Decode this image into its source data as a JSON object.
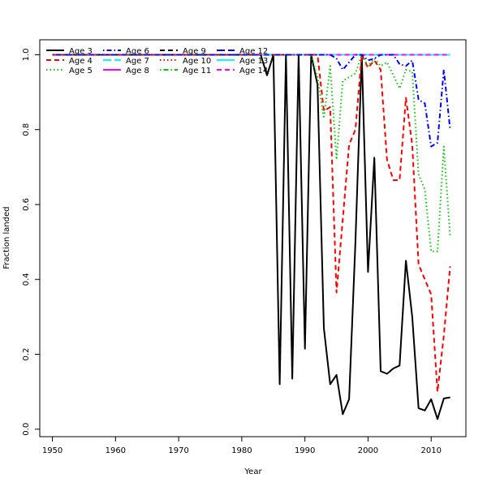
{
  "chart_data": {
    "type": "line",
    "title": "",
    "xlabel": "Year",
    "ylabel": "Fraction landed",
    "xlim": [
      1948,
      2015.5
    ],
    "ylim": [
      -0.02,
      1.04
    ],
    "xticks": [
      1950,
      1960,
      1970,
      1980,
      1990,
      2000,
      2010
    ],
    "yticks": [
      0.0,
      0.2,
      0.4,
      0.6,
      0.8,
      1.0
    ],
    "xtick_labels": [
      "1950",
      "1960",
      "1970",
      "1980",
      "1990",
      "2000",
      "2010"
    ],
    "ytick_labels": [
      "0.0",
      "0.2",
      "0.4",
      "0.6",
      "0.8",
      "1.0"
    ],
    "grid": false,
    "legend_position": "top-left",
    "x": [
      1950,
      1951,
      1952,
      1953,
      1954,
      1955,
      1956,
      1957,
      1958,
      1959,
      1960,
      1961,
      1962,
      1963,
      1964,
      1965,
      1966,
      1967,
      1968,
      1969,
      1970,
      1971,
      1972,
      1973,
      1974,
      1975,
      1976,
      1977,
      1978,
      1979,
      1980,
      1981,
      1982,
      1983,
      1984,
      1985,
      1986,
      1987,
      1988,
      1989,
      1990,
      1991,
      1992,
      1993,
      1994,
      1995,
      1996,
      1997,
      1998,
      1999,
      2000,
      2001,
      2002,
      2003,
      2004,
      2005,
      2006,
      2007,
      2008,
      2009,
      2010,
      2011,
      2012,
      2013
    ],
    "series": [
      {
        "name": "Age 3",
        "color": "#000000",
        "dash": "solid",
        "values": [
          1,
          1,
          1,
          1,
          1,
          1,
          1,
          1,
          1,
          1,
          1,
          1,
          1,
          1,
          1,
          1,
          1,
          1,
          1,
          1,
          1,
          1,
          1,
          1,
          1,
          1,
          1,
          1,
          1,
          1,
          1,
          1,
          1,
          1,
          0.945,
          1,
          0.12,
          1,
          0.135,
          1,
          0.215,
          1,
          0.92,
          0.27,
          0.12,
          0.145,
          0.04,
          0.08,
          0.5,
          1,
          0.42,
          0.725,
          0.155,
          0.148,
          0.162,
          0.17,
          0.45,
          0.3,
          0.056,
          0.05,
          0.08,
          0.027,
          0.082,
          0.085
        ]
      },
      {
        "name": "Age 4",
        "color": "#ff0000",
        "dash": "dashed",
        "values": [
          1,
          1,
          1,
          1,
          1,
          1,
          1,
          1,
          1,
          1,
          1,
          1,
          1,
          1,
          1,
          1,
          1,
          1,
          1,
          1,
          1,
          1,
          1,
          1,
          1,
          1,
          1,
          1,
          1,
          1,
          1,
          1,
          1,
          1,
          1,
          1,
          1,
          1,
          1,
          1,
          1,
          1,
          1,
          0.85,
          0.86,
          0.365,
          0.56,
          0.76,
          0.8,
          1,
          0.965,
          0.985,
          0.96,
          0.72,
          0.665,
          0.665,
          0.885,
          0.76,
          0.44,
          0.4,
          0.36,
          0.1,
          0.25,
          0.435
        ]
      },
      {
        "name": "Age 5",
        "color": "#00cd00",
        "dash": "dotted",
        "values": [
          1,
          1,
          1,
          1,
          1,
          1,
          1,
          1,
          1,
          1,
          1,
          1,
          1,
          1,
          1,
          1,
          1,
          1,
          1,
          1,
          1,
          1,
          1,
          1,
          1,
          1,
          1,
          1,
          1,
          1,
          1,
          1,
          1,
          1,
          1,
          1,
          1,
          1,
          1,
          1,
          1,
          1,
          0.94,
          0.83,
          0.97,
          0.72,
          0.93,
          0.94,
          0.95,
          1,
          0.97,
          0.99,
          0.97,
          0.98,
          0.945,
          0.91,
          0.96,
          0.955,
          0.68,
          0.64,
          0.475,
          0.475,
          0.755,
          0.515
        ]
      },
      {
        "name": "Age 6",
        "color": "#0000ff",
        "dash": "dotdash",
        "values": [
          1,
          1,
          1,
          1,
          1,
          1,
          1,
          1,
          1,
          1,
          1,
          1,
          1,
          1,
          1,
          1,
          1,
          1,
          1,
          1,
          1,
          1,
          1,
          1,
          1,
          1,
          1,
          1,
          1,
          1,
          1,
          1,
          1,
          1,
          1,
          1,
          1,
          1,
          1,
          1,
          1,
          1,
          1,
          1,
          1,
          0.99,
          0.96,
          0.98,
          1,
          1,
          0.985,
          0.99,
          1,
          1,
          1,
          0.975,
          0.97,
          0.985,
          0.88,
          0.87,
          0.755,
          0.765,
          0.96,
          0.8
        ]
      },
      {
        "name": "Age 7",
        "color": "#00ffff",
        "dash": "longdash",
        "values": [
          1,
          1,
          1,
          1,
          1,
          1,
          1,
          1,
          1,
          1,
          1,
          1,
          1,
          1,
          1,
          1,
          1,
          1,
          1,
          1,
          1,
          1,
          1,
          1,
          1,
          1,
          1,
          1,
          1,
          1,
          1,
          1,
          1,
          1,
          1,
          1,
          1,
          1,
          1,
          1,
          1,
          1,
          1,
          1,
          1,
          1,
          1,
          1,
          1,
          1,
          1,
          1,
          1,
          1,
          1,
          1,
          1,
          1,
          1,
          1,
          1,
          1,
          1,
          1
        ]
      },
      {
        "name": "Age 8",
        "color": "#ff00ff",
        "dash": "solid",
        "values": [
          1,
          1,
          1,
          1,
          1,
          1,
          1,
          1,
          1,
          1,
          1,
          1,
          1,
          1,
          1,
          1,
          1,
          1,
          1,
          1,
          1,
          1,
          1,
          1,
          1,
          1,
          1,
          1,
          1,
          1,
          1,
          1,
          1,
          1,
          1,
          1,
          1,
          1,
          1,
          1,
          1,
          1,
          1,
          1,
          1,
          1,
          1,
          1,
          1,
          1,
          1,
          1,
          1,
          1,
          1,
          1,
          1,
          1,
          1,
          1,
          1,
          1,
          1,
          1
        ]
      },
      {
        "name": "Age 9",
        "color": "#000000",
        "dash": "dashed",
        "values": [
          1,
          1,
          1,
          1,
          1,
          1,
          1,
          1,
          1,
          1,
          1,
          1,
          1,
          1,
          1,
          1,
          1,
          1,
          1,
          1,
          1,
          1,
          1,
          1,
          1,
          1,
          1,
          1,
          1,
          1,
          1,
          1,
          1,
          1,
          1,
          1,
          1,
          1,
          1,
          1,
          1,
          1,
          1,
          1,
          1,
          1,
          1,
          1,
          1,
          1,
          1,
          1,
          1,
          1,
          1,
          1,
          1,
          1,
          1,
          1,
          1,
          1,
          1,
          1
        ]
      },
      {
        "name": "Age 10",
        "color": "#ff0000",
        "dash": "dotted",
        "values": [
          1,
          1,
          1,
          1,
          1,
          1,
          1,
          1,
          1,
          1,
          1,
          1,
          1,
          1,
          1,
          1,
          1,
          1,
          1,
          1,
          1,
          1,
          1,
          1,
          1,
          1,
          1,
          1,
          1,
          1,
          1,
          1,
          1,
          1,
          1,
          1,
          1,
          1,
          1,
          1,
          1,
          1,
          1,
          1,
          1,
          1,
          1,
          1,
          1,
          1,
          1,
          1,
          1,
          1,
          1,
          1,
          1,
          1,
          1,
          1,
          1,
          1,
          1,
          1
        ]
      },
      {
        "name": "Age 11",
        "color": "#00cd00",
        "dash": "dotdash",
        "values": [
          1,
          1,
          1,
          1,
          1,
          1,
          1,
          1,
          1,
          1,
          1,
          1,
          1,
          1,
          1,
          1,
          1,
          1,
          1,
          1,
          1,
          1,
          1,
          1,
          1,
          1,
          1,
          1,
          1,
          1,
          1,
          1,
          1,
          1,
          1,
          1,
          1,
          1,
          1,
          1,
          1,
          1,
          1,
          1,
          1,
          1,
          1,
          1,
          1,
          1,
          1,
          1,
          1,
          1,
          1,
          1,
          1,
          1,
          1,
          1,
          1,
          1,
          1,
          1
        ]
      },
      {
        "name": "Age 12",
        "color": "#0000ff",
        "dash": "longdash",
        "values": [
          1,
          1,
          1,
          1,
          1,
          1,
          1,
          1,
          1,
          1,
          1,
          1,
          1,
          1,
          1,
          1,
          1,
          1,
          1,
          1,
          1,
          1,
          1,
          1,
          1,
          1,
          1,
          1,
          1,
          1,
          1,
          1,
          1,
          1,
          1,
          1,
          1,
          1,
          1,
          1,
          1,
          1,
          1,
          1,
          1,
          1,
          1,
          1,
          1,
          1,
          1,
          1,
          1,
          1,
          1,
          1,
          1,
          1,
          1,
          1,
          1,
          1,
          1,
          1
        ]
      },
      {
        "name": "Age 13",
        "color": "#00ffff",
        "dash": "solid",
        "values": [
          1,
          1,
          1,
          1,
          1,
          1,
          1,
          1,
          1,
          1,
          1,
          1,
          1,
          1,
          1,
          1,
          1,
          1,
          1,
          1,
          1,
          1,
          1,
          1,
          1,
          1,
          1,
          1,
          1,
          1,
          1,
          1,
          1,
          1,
          1,
          1,
          1,
          1,
          1,
          1,
          1,
          1,
          1,
          1,
          1,
          1,
          1,
          1,
          1,
          1,
          1,
          1,
          1,
          1,
          1,
          1,
          1,
          1,
          1,
          1,
          1,
          1,
          1,
          1
        ]
      },
      {
        "name": "Age 14",
        "color": "#ff00ff",
        "dash": "dashed",
        "values": [
          1,
          1,
          1,
          1,
          1,
          1,
          1,
          1,
          1,
          1,
          1,
          1,
          1,
          1,
          1,
          1,
          1,
          1,
          1,
          1,
          1,
          1,
          1,
          1,
          1,
          1,
          1,
          1,
          1,
          1,
          1,
          1,
          1,
          1,
          1,
          1,
          1,
          1,
          1,
          1,
          1,
          1,
          1,
          1,
          1,
          1,
          1,
          1,
          1,
          1,
          1,
          1,
          1,
          1,
          1,
          1,
          1,
          1,
          1,
          1,
          1,
          1,
          1,
          1
        ]
      }
    ]
  }
}
